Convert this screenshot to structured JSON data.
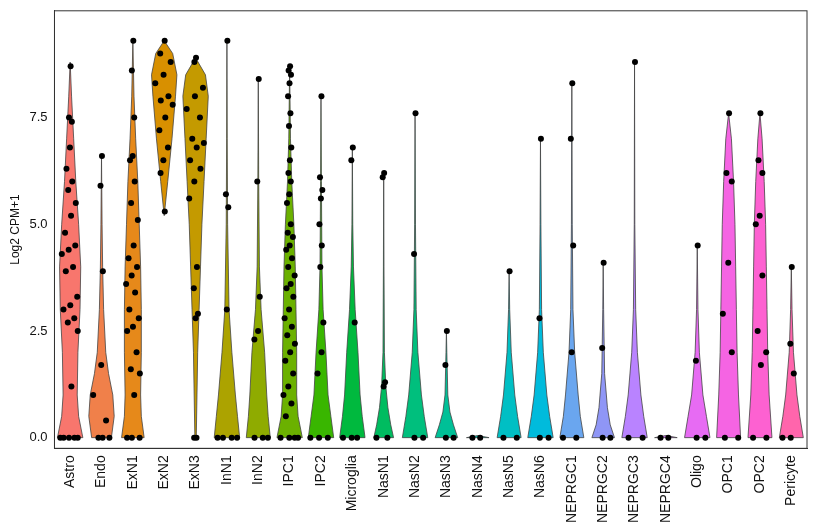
{
  "chart_data": {
    "type": "violin",
    "y_label": "Log2 CPM+1",
    "categories": [
      "Astro",
      "Endo",
      "ExN1",
      "ExN2",
      "ExN3",
      "InN1",
      "InN2",
      "IPC1",
      "IPC2",
      "Microglia",
      "NasN1",
      "NasN2",
      "NasN3",
      "NasN4",
      "NasN5",
      "NasN6",
      "NEPRGC1",
      "NEPRGC2",
      "NEPRGC3",
      "NEPRGC4",
      "Oligo",
      "OPC1",
      "OPC2",
      "Pericyte"
    ],
    "colors": [
      "#f8766d",
      "#f0804a",
      "#e6891a",
      "#d89000",
      "#c49a00",
      "#aca300",
      "#8fab00",
      "#6bb100",
      "#39b600",
      "#00b93e",
      "#00bc60",
      "#00bf7d",
      "#00c097",
      "#00c0af",
      "#00bfc4",
      "#00bbdc",
      "#6aa6ef",
      "#8f96f6",
      "#b983ff",
      "#d575fe",
      "#e76bf3",
      "#f564e3",
      "#fd61d1",
      "#ff65ac"
    ],
    "values": [
      [
        8.7,
        7.5,
        7.4,
        6.8,
        6.3,
        6.0,
        5.8,
        5.5,
        5.2,
        4.8,
        4.5,
        4.4,
        4.3,
        4.0,
        3.9,
        3.3,
        3.1,
        3.0,
        2.8,
        2.7,
        2.5,
        1.2,
        0,
        0,
        0,
        0,
        0
      ],
      [
        6.6,
        5.9,
        3.9,
        1.7,
        1.0,
        0.4,
        0,
        0,
        0
      ],
      [
        9.3,
        8.6,
        7.5,
        6.6,
        6.5,
        6.0,
        5.5,
        5.1,
        4.5,
        4.2,
        4.0,
        3.8,
        3.6,
        3.4,
        3.0,
        2.8,
        2.6,
        2.5,
        2.0,
        1.6,
        1.5,
        1.0,
        0,
        0,
        0
      ],
      [
        9.3,
        9.0,
        8.8,
        8.5,
        8.3,
        8.0,
        7.9,
        7.8,
        7.5,
        7.2,
        6.8,
        6.5,
        6.2,
        5.3
      ],
      [
        8.9,
        8.8,
        8.2,
        8.0,
        7.7,
        7.5,
        7.0,
        6.9,
        6.8,
        6.5,
        6.3,
        6.0,
        5.6,
        4.0,
        3.5,
        2.9,
        2.8,
        0,
        0
      ],
      [
        9.3,
        5.7,
        5.4,
        3.0,
        0,
        0,
        0,
        0
      ],
      [
        8.4,
        6.0,
        3.3,
        2.5,
        2.3,
        0,
        0,
        0
      ],
      [
        8.7,
        8.6,
        8.5,
        8.3,
        8.0,
        7.6,
        7.3,
        6.8,
        6.5,
        6.2,
        6.0,
        5.7,
        5.5,
        5.0,
        4.8,
        4.7,
        4.5,
        4.4,
        4.2,
        4.0,
        3.8,
        3.6,
        3.5,
        3.3,
        3.0,
        2.8,
        2.6,
        2.4,
        2.2,
        2.0,
        1.8,
        1.5,
        1.2,
        1.0,
        0.8,
        0.5,
        0,
        0,
        0,
        0
      ],
      [
        8.0,
        6.1,
        5.8,
        5.6,
        5.0,
        4.5,
        4.0,
        2.7,
        2.0,
        1.5,
        0,
        0,
        0
      ],
      [
        6.8,
        6.5,
        2.7,
        0,
        0,
        0
      ],
      [
        6.2,
        6.1,
        1.3,
        1.2,
        0,
        0
      ],
      [
        7.6,
        4.3,
        0,
        0
      ],
      [
        2.5,
        1.7,
        0,
        0
      ],
      [
        0,
        0
      ],
      [
        3.9,
        0,
        0
      ],
      [
        7.0,
        2.8,
        0,
        0
      ],
      [
        8.3,
        7.0,
        4.5,
        2.0,
        0,
        0
      ],
      [
        4.1,
        2.1,
        0,
        0
      ],
      [
        8.8,
        0,
        0
      ],
      [
        0,
        0
      ],
      [
        4.5,
        1.8,
        0,
        0
      ],
      [
        7.6,
        6.2,
        6.0,
        4.1,
        2.9,
        2.0,
        0,
        0
      ],
      [
        7.6,
        6.5,
        6.2,
        5.2,
        5.0,
        3.8,
        2.5,
        2.0,
        1.7,
        0,
        0
      ],
      [
        4.0,
        2.2,
        1.5,
        0,
        0
      ]
    ],
    "density_y": [
      [
        0,
        0.5,
        1,
        2,
        3,
        4,
        5,
        6,
        7,
        8,
        8.8
      ],
      [
        0,
        0.5,
        1,
        1.5,
        2,
        3,
        4,
        5,
        6.6
      ],
      [
        0,
        0.5,
        1,
        2,
        3,
        4,
        5,
        6,
        7,
        8,
        9.3
      ],
      [
        5.2,
        6,
        7,
        8,
        8.5,
        9,
        9.3
      ],
      [
        0,
        1,
        2,
        3,
        4,
        5,
        6,
        7,
        8,
        8.5,
        8.9
      ],
      [
        0,
        0.5,
        1,
        2,
        3,
        5,
        7,
        9.3
      ],
      [
        0,
        0.5,
        1,
        2,
        3,
        4,
        6,
        8.4
      ],
      [
        0,
        0.5,
        1,
        2,
        3,
        4,
        5,
        6,
        7,
        8.7
      ],
      [
        0,
        0.5,
        1,
        2,
        3,
        4,
        6,
        8
      ],
      [
        0,
        0.5,
        1,
        2,
        3,
        4,
        5,
        6.8
      ],
      [
        0,
        0.3,
        0.7,
        1.2,
        2,
        4,
        6.2
      ],
      [
        0,
        0.5,
        1,
        2,
        3,
        5,
        7.6
      ],
      [
        0,
        0.3,
        0.6,
        1,
        2,
        2.5
      ],
      [
        0,
        0.05
      ],
      [
        0,
        0.5,
        1,
        2,
        3,
        3.9
      ],
      [
        0,
        0.5,
        1,
        2,
        3,
        5,
        7
      ],
      [
        0,
        0.5,
        1,
        2,
        3,
        5,
        8.3
      ],
      [
        0,
        0.3,
        0.7,
        1.5,
        3,
        4.1
      ],
      [
        0,
        0.5,
        1,
        2,
        3,
        5,
        8.8
      ],
      [
        0,
        0.05
      ],
      [
        0,
        0.5,
        1,
        2,
        3,
        4.5
      ],
      [
        0,
        1,
        2,
        3,
        4,
        5,
        6,
        7,
        7.6
      ],
      [
        0,
        1,
        2,
        3,
        4,
        5,
        6,
        7,
        7.6
      ],
      [
        0,
        0.5,
        1,
        2,
        3,
        4
      ]
    ],
    "density": [
      [
        0.9,
        0.6,
        0.5,
        0.55,
        0.7,
        0.75,
        0.6,
        0.4,
        0.25,
        0.1,
        0
      ],
      [
        0.7,
        0.9,
        0.8,
        0.5,
        0.3,
        0.15,
        0.08,
        0.04,
        0
      ],
      [
        0.8,
        0.6,
        0.55,
        0.6,
        0.6,
        0.55,
        0.45,
        0.35,
        0.2,
        0.08,
        0
      ],
      [
        0,
        0.25,
        0.55,
        0.8,
        0.9,
        0.6,
        0
      ],
      [
        0.05,
        0.1,
        0.15,
        0.25,
        0.35,
        0.45,
        0.6,
        0.75,
        0.9,
        0.7,
        0
      ],
      [
        0.9,
        0.75,
        0.6,
        0.35,
        0.15,
        0.05,
        0.02,
        0
      ],
      [
        0.85,
        0.7,
        0.6,
        0.45,
        0.2,
        0.08,
        0.03,
        0
      ],
      [
        0.9,
        0.6,
        0.5,
        0.5,
        0.45,
        0.4,
        0.3,
        0.15,
        0.06,
        0
      ],
      [
        0.9,
        0.7,
        0.5,
        0.35,
        0.15,
        0.07,
        0.03,
        0
      ],
      [
        0.9,
        0.7,
        0.55,
        0.4,
        0.2,
        0.08,
        0.03,
        0
      ],
      [
        0.7,
        0.5,
        0.3,
        0.15,
        0.05,
        0.02,
        0
      ],
      [
        0.9,
        0.65,
        0.45,
        0.2,
        0.08,
        0.03,
        0
      ],
      [
        0.8,
        0.5,
        0.25,
        0.1,
        0.03,
        0
      ],
      [
        0.8,
        0
      ],
      [
        0.85,
        0.6,
        0.4,
        0.15,
        0.04,
        0
      ],
      [
        0.9,
        0.65,
        0.45,
        0.2,
        0.08,
        0.03,
        0
      ],
      [
        0.85,
        0.6,
        0.45,
        0.2,
        0.08,
        0.03,
        0
      ],
      [
        0.8,
        0.5,
        0.3,
        0.1,
        0.03,
        0
      ],
      [
        0.9,
        0.65,
        0.45,
        0.2,
        0.08,
        0.02,
        0
      ],
      [
        0.8,
        0
      ],
      [
        0.9,
        0.65,
        0.4,
        0.15,
        0.05,
        0
      ],
      [
        0.85,
        0.7,
        0.6,
        0.55,
        0.5,
        0.45,
        0.35,
        0.2,
        0
      ],
      [
        0.85,
        0.65,
        0.55,
        0.5,
        0.45,
        0.4,
        0.3,
        0.15,
        0
      ],
      [
        0.85,
        0.6,
        0.4,
        0.15,
        0.05,
        0
      ]
    ],
    "ylim": [
      -0.25,
      10
    ],
    "yticks": [
      {
        "value": 0,
        "label": "0.0"
      },
      2.5,
      {
        "value": 5,
        "label": "5.0"
      },
      7.5
    ],
    "grid": false,
    "marker": "circle"
  }
}
